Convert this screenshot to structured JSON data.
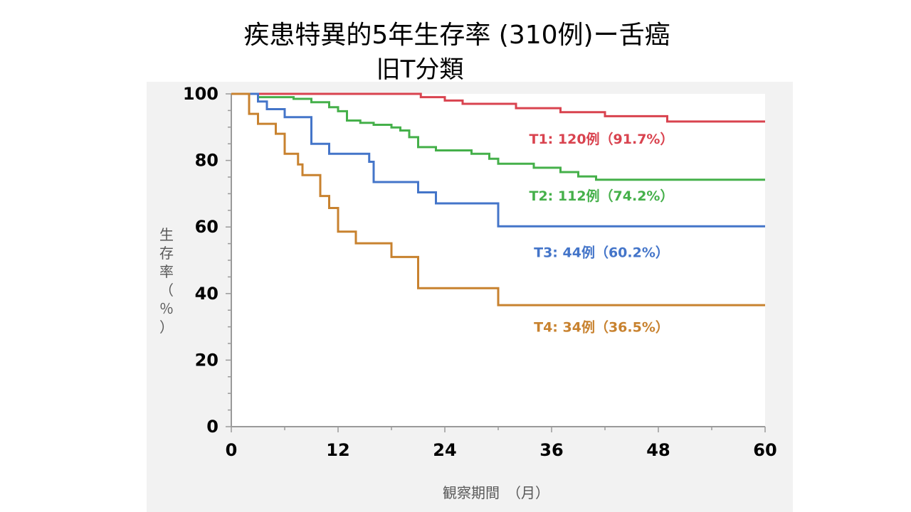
{
  "title_line1": "疾患特異的5年生存率 (310例)ー舌癌",
  "title_line2": "旧T分類",
  "chart_data": {
    "type": "line",
    "title": "疾患特異的5年生存率 (310例)ー舌癌 旧T分類",
    "xlabel": "観察期間　（月）",
    "ylabel": "生存率（％）",
    "ylabel_chars": [
      "生",
      "存",
      "率",
      "（",
      "％",
      "）"
    ],
    "xlim": [
      0,
      60
    ],
    "ylim": [
      0,
      100
    ],
    "xticks": [
      "0",
      "12",
      "24",
      "36",
      "48",
      "60"
    ],
    "yticks": [
      "0",
      "20",
      "40",
      "60",
      "80",
      "100"
    ],
    "grid": false,
    "series": [
      {
        "name": "T1",
        "label": "T1: 120例（91.7%）",
        "color": "#d9434f",
        "x": [
          0,
          21.3,
          24,
          26,
          30,
          32,
          37,
          42,
          49,
          60
        ],
        "y": [
          100,
          99,
          98,
          97,
          97,
          95.7,
          94.5,
          93.3,
          91.7,
          91.7
        ]
      },
      {
        "name": "T2",
        "label": "T2: 112例（74.2%）",
        "color": "#45b04a",
        "x": [
          0,
          3,
          7,
          9,
          11,
          12,
          13,
          14.5,
          16,
          18,
          19,
          20,
          21,
          23,
          27,
          29,
          30,
          34,
          37,
          39,
          41,
          60
        ],
        "y": [
          100,
          99,
          98.5,
          97.5,
          96,
          94.8,
          92,
          91.3,
          90.7,
          89.9,
          89,
          87,
          84,
          83,
          82,
          80.5,
          79,
          77.8,
          76.5,
          75.2,
          74.2,
          74.2
        ]
      },
      {
        "name": "T3",
        "label": "T3: 44例（60.2%）",
        "color": "#4475c9",
        "x": [
          0,
          3,
          4,
          6,
          9,
          11,
          15.5,
          16,
          21,
          23,
          30,
          60
        ],
        "y": [
          100,
          97.7,
          95.4,
          93,
          85,
          82,
          79.6,
          73.5,
          70.4,
          67.1,
          60.2,
          60.2
        ]
      },
      {
        "name": "T4",
        "label": "T4: 34例（36.5%）",
        "color": "#c8822f",
        "x": [
          0,
          2,
          3,
          5,
          6,
          7.5,
          8,
          10,
          11,
          12,
          14,
          18,
          21,
          30,
          60
        ],
        "y": [
          100,
          94,
          91,
          88,
          82,
          78.8,
          75.6,
          69.3,
          65.7,
          58.6,
          55.1,
          51,
          41.6,
          36.5,
          36.5
        ]
      }
    ]
  }
}
